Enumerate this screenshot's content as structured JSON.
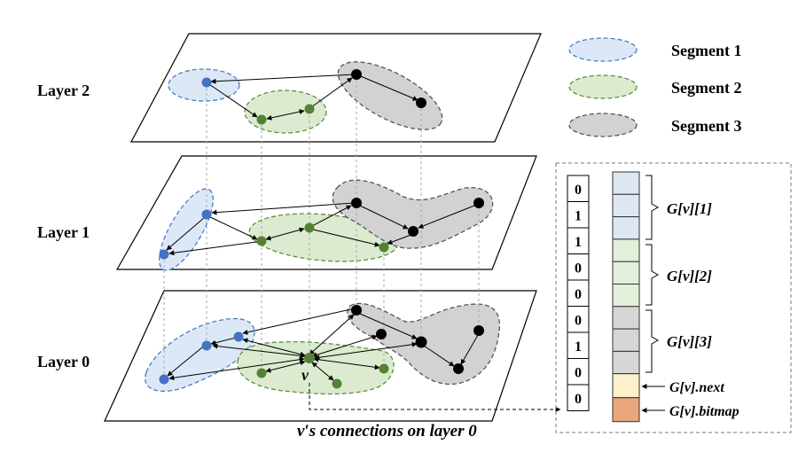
{
  "layers": [
    {
      "label": "Layer 2"
    },
    {
      "label": "Layer 1"
    },
    {
      "label": "Layer 0"
    }
  ],
  "legend": [
    {
      "label": "Segment 1",
      "fill": "#dce8f5",
      "stroke": "#4a7cc7"
    },
    {
      "label": "Segment 2",
      "fill": "#dcebd0",
      "stroke": "#5b8f3a"
    },
    {
      "label": "Segment 3",
      "fill": "#d2d2d2",
      "stroke": "#555555"
    }
  ],
  "node_colors": {
    "segment1": "#4472c4",
    "segment2": "#548235",
    "segment3": "#000000"
  },
  "vertex_label": "v",
  "connections_caption": "v′s connections on layer 0",
  "bitmap_bits": [
    "0",
    "1",
    "1",
    "0",
    "0",
    "0",
    "1",
    "0",
    "0"
  ],
  "g_labels": {
    "seg1": "G[v][1]",
    "seg2": "G[v][2]",
    "seg3": "G[v][3]",
    "next": "G[v].next",
    "bitmap": "G[v].bitmap"
  },
  "storage_colors": {
    "seg1": "#dde8f3",
    "seg2": "#e3efd9",
    "seg3": "#d6d6d6",
    "next": "#fdf1cc",
    "bitmap": "#e8a87c"
  }
}
